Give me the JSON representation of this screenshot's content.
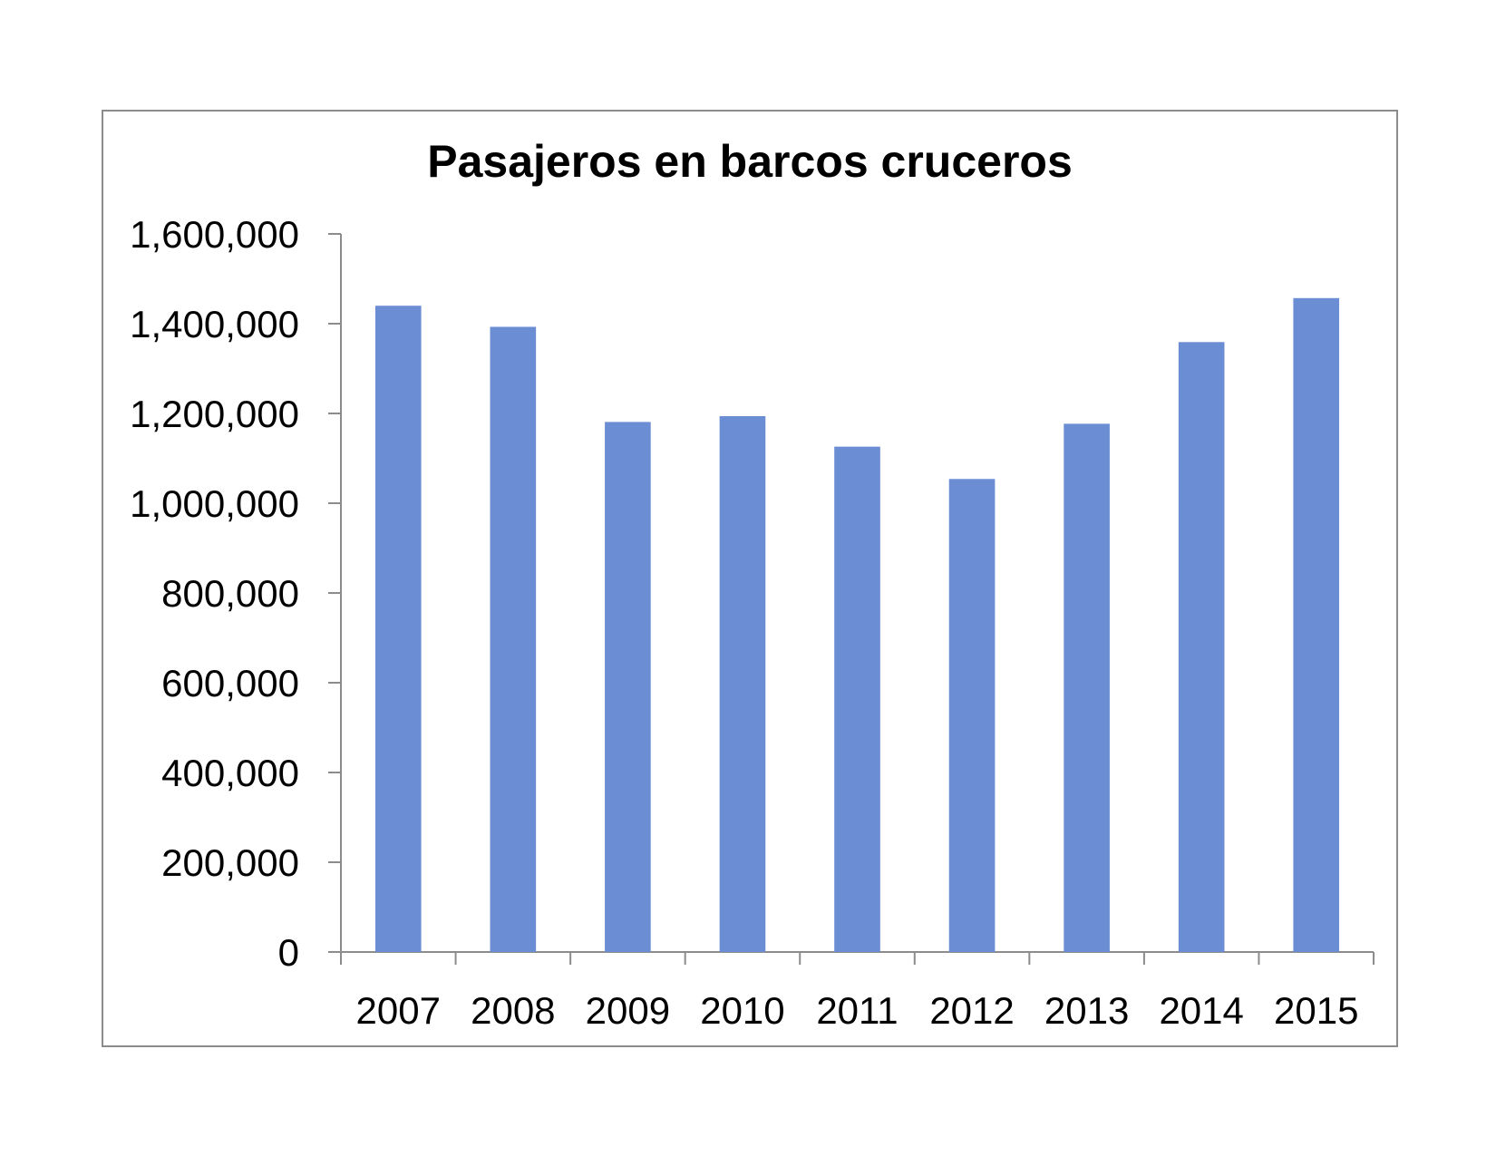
{
  "chart_data": {
    "type": "bar",
    "title": "Pasajeros en barcos cruceros",
    "xlabel": "",
    "ylabel": "",
    "categories": [
      "2007",
      "2008",
      "2009",
      "2010",
      "2011",
      "2012",
      "2013",
      "2014",
      "2015"
    ],
    "values": [
      1440000,
      1393000,
      1181000,
      1194000,
      1126000,
      1054000,
      1177000,
      1359000,
      1457000
    ],
    "ylim": [
      0,
      1600000
    ],
    "yticks": [
      0,
      200000,
      400000,
      600000,
      800000,
      1000000,
      1200000,
      1400000,
      1600000
    ],
    "ytick_labels": [
      "0",
      "200,000",
      "400,000",
      "600,000",
      "800,000",
      "1,000,000",
      "1,200,000",
      "1,400,000",
      "1,600,000"
    ],
    "grid": false,
    "legend": "none",
    "bar_color": "#6b8dd4"
  }
}
